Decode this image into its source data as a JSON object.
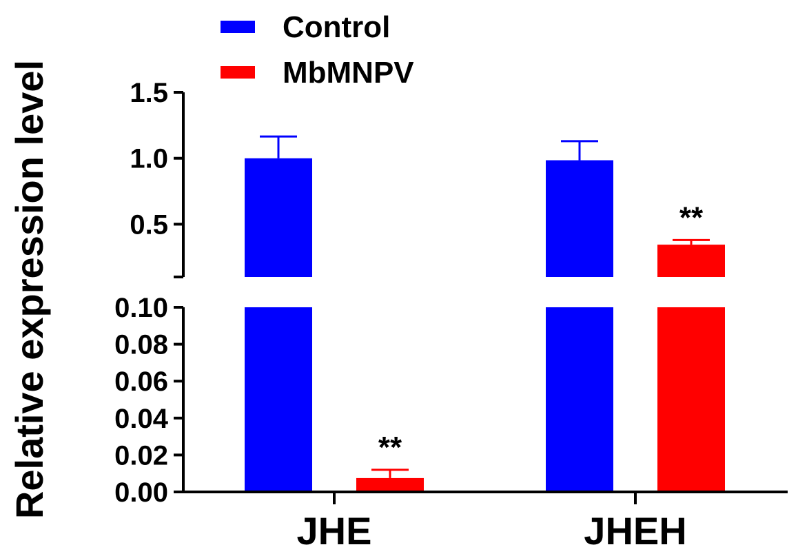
{
  "chart_data": {
    "type": "bar",
    "ylabel": "Relative expression level",
    "categories": [
      "JHE",
      "JHEH"
    ],
    "series": [
      {
        "name": "Control",
        "color": "#0000ff",
        "values": [
          1.0,
          0.985
        ],
        "errors": [
          0.165,
          0.145
        ],
        "significance": [
          "",
          ""
        ]
      },
      {
        "name": "MbMNPV",
        "color": "#ff0000",
        "values": [
          0.0075,
          0.345
        ],
        "errors": [
          0.0045,
          0.035
        ],
        "significance": [
          "**",
          "**"
        ]
      }
    ],
    "broken_y_axis": {
      "lower_segment": {
        "ylim": [
          0,
          0.1
        ],
        "ticks": [
          0.0,
          0.02,
          0.04,
          0.06,
          0.08,
          0.1
        ],
        "tick_labels": [
          "0.00",
          "0.02",
          "0.04",
          "0.06",
          "0.08",
          "0.10"
        ]
      },
      "upper_segment": {
        "ylim": [
          0.1,
          1.5
        ],
        "ticks": [
          0.5,
          1.0,
          1.5
        ],
        "tick_labels": [
          "0.5",
          "1.0",
          "1.5"
        ]
      }
    },
    "legend": {
      "position": "top-left"
    }
  }
}
